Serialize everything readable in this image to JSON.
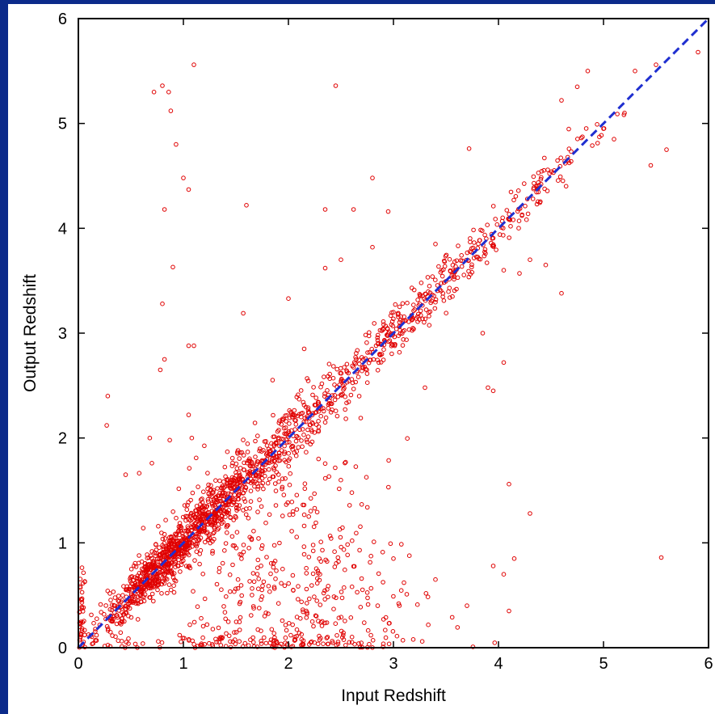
{
  "chart_data": {
    "type": "scatter",
    "title": "",
    "xlabel": "Input Redshift",
    "ylabel": "Output Redshift",
    "xlim": [
      0,
      6
    ],
    "ylim": [
      0,
      6
    ],
    "x_ticks": [
      "0",
      "1",
      "2",
      "3",
      "4",
      "5",
      "6"
    ],
    "y_ticks": [
      "0",
      "1",
      "2",
      "3",
      "4",
      "5",
      "6"
    ],
    "grid": false,
    "marker": "open-circle",
    "colors": {
      "points": "#e00000",
      "reference_line": "#1f2fd0",
      "background": "#0b2a8a"
    },
    "reference_line": {
      "style": "dashed",
      "from": [
        0,
        0
      ],
      "to": [
        6,
        6
      ]
    },
    "series": [
      {
        "points": [
          [
            0.8,
            5.36
          ],
          [
            0.86,
            5.3
          ],
          [
            0.72,
            5.3
          ],
          [
            1.1,
            5.56
          ],
          [
            2.45,
            5.36
          ],
          [
            0.88,
            5.12
          ],
          [
            0.93,
            4.8
          ],
          [
            1.0,
            4.48
          ],
          [
            1.05,
            4.37
          ],
          [
            0.82,
            4.18
          ],
          [
            1.6,
            4.22
          ],
          [
            2.35,
            4.18
          ],
          [
            2.62,
            4.18
          ],
          [
            2.8,
            4.48
          ],
          [
            2.95,
            4.16
          ],
          [
            0.9,
            3.63
          ],
          [
            1.57,
            3.19
          ],
          [
            2.0,
            3.33
          ],
          [
            0.8,
            3.28
          ],
          [
            1.05,
            2.88
          ],
          [
            1.1,
            2.88
          ],
          [
            0.78,
            2.65
          ],
          [
            0.82,
            2.75
          ],
          [
            0.28,
            2.4
          ],
          [
            0.27,
            2.12
          ],
          [
            0.45,
            1.65
          ],
          [
            0.68,
            2.0
          ],
          [
            0.7,
            1.76
          ],
          [
            1.05,
            2.22
          ],
          [
            1.08,
            2.0
          ],
          [
            0.87,
            1.98
          ],
          [
            3.72,
            4.76
          ],
          [
            5.5,
            5.56
          ],
          [
            5.9,
            5.68
          ],
          [
            5.3,
            5.5
          ],
          [
            4.85,
            5.5
          ],
          [
            4.6,
            5.22
          ],
          [
            4.75,
            5.35
          ],
          [
            5.0,
            4.95
          ],
          [
            5.2,
            5.1
          ],
          [
            5.6,
            4.75
          ],
          [
            5.45,
            4.6
          ],
          [
            5.1,
            4.85
          ],
          [
            4.3,
            1.28
          ],
          [
            4.1,
            1.56
          ],
          [
            5.55,
            0.86
          ],
          [
            4.05,
            0.7
          ],
          [
            4.15,
            0.85
          ],
          [
            3.95,
            0.78
          ],
          [
            3.7,
            0.4
          ],
          [
            4.1,
            0.35
          ],
          [
            3.1,
            0.62
          ],
          [
            3.4,
            0.65
          ],
          [
            3.0,
            0.85
          ],
          [
            2.3,
            0.7
          ],
          [
            2.85,
            0.4
          ],
          [
            3.05,
            0.42
          ],
          [
            3.9,
            2.48
          ],
          [
            3.95,
            2.45
          ],
          [
            4.05,
            2.72
          ],
          [
            3.3,
            2.48
          ],
          [
            3.6,
            3.42
          ],
          [
            3.85,
            3.0
          ],
          [
            4.3,
            3.7
          ],
          [
            4.45,
            3.65
          ],
          [
            4.6,
            3.38
          ],
          [
            4.2,
            3.57
          ],
          [
            4.05,
            3.6
          ],
          [
            3.4,
            3.85
          ],
          [
            2.8,
            3.82
          ],
          [
            2.5,
            3.7
          ],
          [
            2.35,
            3.62
          ],
          [
            3.0,
            3.2
          ],
          [
            2.15,
            2.85
          ]
        ],
        "clusters": [
          {
            "center": [
              0.9,
              0.9
            ],
            "spread": [
              0.35,
              0.3
            ],
            "count": 700,
            "correlated": true
          },
          {
            "center": [
              1.5,
              1.45
            ],
            "spread": [
              0.55,
              0.45
            ],
            "count": 450,
            "correlated": true
          },
          {
            "center": [
              2.4,
              2.45
            ],
            "spread": [
              0.35,
              0.35
            ],
            "count": 160,
            "correlated": true
          },
          {
            "center": [
              3.3,
              3.3
            ],
            "spread": [
              0.35,
              0.35
            ],
            "count": 200,
            "correlated": true
          },
          {
            "center": [
              4.3,
              4.3
            ],
            "spread": [
              0.35,
              0.3
            ],
            "count": 120,
            "correlated": true
          },
          {
            "center": [
              2.0,
              1.0
            ],
            "spread": [
              0.55,
              0.6
            ],
            "count": 300,
            "correlated": false
          },
          {
            "center": [
              1.6,
              0.05
            ],
            "spread": [
              0.8,
              0.04
            ],
            "count": 120,
            "correlated": false
          },
          {
            "center": [
              0.03,
              0.35
            ],
            "spread": [
              0.02,
              0.3
            ],
            "count": 40,
            "correlated": false
          },
          {
            "center": [
              2.2,
              0.35
            ],
            "spread": [
              0.5,
              0.25
            ],
            "count": 90,
            "correlated": false
          }
        ]
      }
    ]
  }
}
